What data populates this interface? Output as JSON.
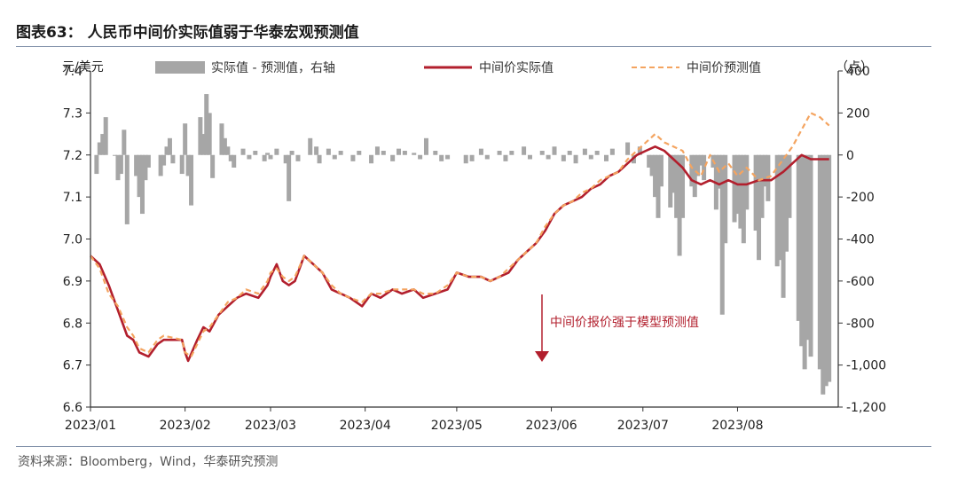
{
  "header": {
    "title": "图表63：  人民币中间价实际值弱于华泰宏观预测值"
  },
  "footer": {
    "source": "资料来源：Bloomberg，Wind，华泰研究预测"
  },
  "colors": {
    "actual": "#b21f2d",
    "predicted": "#f4a460",
    "bars": "#a6a6a6",
    "axis": "#333333",
    "rule": "#7f8fa8"
  },
  "chart_data": {
    "type": "line",
    "y_left_label": "元/美元",
    "y_right_label": "（点）",
    "y_left_range": [
      6.6,
      7.4
    ],
    "y_right_range": [
      -1200,
      400
    ],
    "y_left_ticks": [
      "7.4",
      "7.3",
      "7.2",
      "7.1",
      "7.0",
      "6.9",
      "6.8",
      "6.7",
      "6.6"
    ],
    "y_right_ticks": [
      "400",
      "200",
      "0",
      "-200",
      "-400",
      "-600",
      "-800",
      "-1,000",
      "-1,200"
    ],
    "x_ticks": [
      "2023/01",
      "2023/02",
      "2023/03",
      "2023/04",
      "2023/05",
      "2023/06",
      "2023/07",
      "2023/08"
    ],
    "legend": {
      "bars": "实际值 - 预测值，右轴",
      "actual": "中间价实际值",
      "predicted": "中间价预测值"
    },
    "annotation": "中间价报价强于模型预测值",
    "series_actual": {
      "name": "中间价实际值",
      "points": [
        [
          "2023-01-01",
          6.96
        ],
        [
          "2023-01-04",
          6.94
        ],
        [
          "2023-01-07",
          6.89
        ],
        [
          "2023-01-10",
          6.83
        ],
        [
          "2023-01-13",
          6.77
        ],
        [
          "2023-01-15",
          6.76
        ],
        [
          "2023-01-17",
          6.73
        ],
        [
          "2023-01-20",
          6.72
        ],
        [
          "2023-01-23",
          6.75
        ],
        [
          "2023-01-25",
          6.76
        ],
        [
          "2023-01-31",
          6.76
        ],
        [
          "2023-02-01",
          6.73
        ],
        [
          "2023-02-02",
          6.71
        ],
        [
          "2023-02-05",
          6.76
        ],
        [
          "2023-02-07",
          6.79
        ],
        [
          "2023-02-09",
          6.78
        ],
        [
          "2023-02-12",
          6.82
        ],
        [
          "2023-02-15",
          6.84
        ],
        [
          "2023-02-18",
          6.86
        ],
        [
          "2023-02-21",
          6.87
        ],
        [
          "2023-02-25",
          6.86
        ],
        [
          "2023-02-28",
          6.89
        ],
        [
          "2023-03-01",
          6.91
        ],
        [
          "2023-03-03",
          6.94
        ],
        [
          "2023-03-05",
          6.9
        ],
        [
          "2023-03-07",
          6.89
        ],
        [
          "2023-03-09",
          6.9
        ],
        [
          "2023-03-12",
          6.96
        ],
        [
          "2023-03-15",
          6.94
        ],
        [
          "2023-03-18",
          6.92
        ],
        [
          "2023-03-21",
          6.88
        ],
        [
          "2023-03-24",
          6.87
        ],
        [
          "2023-03-27",
          6.86
        ],
        [
          "2023-03-31",
          6.84
        ],
        [
          "2023-04-03",
          6.87
        ],
        [
          "2023-04-06",
          6.86
        ],
        [
          "2023-04-10",
          6.88
        ],
        [
          "2023-04-13",
          6.87
        ],
        [
          "2023-04-17",
          6.88
        ],
        [
          "2023-04-20",
          6.86
        ],
        [
          "2023-04-24",
          6.87
        ],
        [
          "2023-04-28",
          6.88
        ],
        [
          "2023-05-01",
          6.92
        ],
        [
          "2023-05-05",
          6.91
        ],
        [
          "2023-05-09",
          6.91
        ],
        [
          "2023-05-12",
          6.9
        ],
        [
          "2023-05-15",
          6.91
        ],
        [
          "2023-05-18",
          6.92
        ],
        [
          "2023-05-21",
          6.95
        ],
        [
          "2023-05-24",
          6.97
        ],
        [
          "2023-05-27",
          6.99
        ],
        [
          "2023-05-30",
          7.02
        ],
        [
          "2023-06-02",
          7.06
        ],
        [
          "2023-06-05",
          7.08
        ],
        [
          "2023-06-08",
          7.09
        ],
        [
          "2023-06-11",
          7.1
        ],
        [
          "2023-06-14",
          7.12
        ],
        [
          "2023-06-17",
          7.13
        ],
        [
          "2023-06-20",
          7.15
        ],
        [
          "2023-06-23",
          7.16
        ],
        [
          "2023-06-26",
          7.18
        ],
        [
          "2023-06-29",
          7.2
        ],
        [
          "2023-07-02",
          7.21
        ],
        [
          "2023-07-05",
          7.22
        ],
        [
          "2023-07-08",
          7.21
        ],
        [
          "2023-07-11",
          7.19
        ],
        [
          "2023-07-14",
          7.17
        ],
        [
          "2023-07-17",
          7.14
        ],
        [
          "2023-07-20",
          7.13
        ],
        [
          "2023-07-23",
          7.14
        ],
        [
          "2023-07-26",
          7.13
        ],
        [
          "2023-07-29",
          7.14
        ],
        [
          "2023-08-01",
          7.13
        ],
        [
          "2023-08-04",
          7.13
        ],
        [
          "2023-08-08",
          7.14
        ],
        [
          "2023-08-12",
          7.14
        ],
        [
          "2023-08-16",
          7.16
        ],
        [
          "2023-08-19",
          7.18
        ],
        [
          "2023-08-22",
          7.2
        ],
        [
          "2023-08-25",
          7.19
        ],
        [
          "2023-08-28",
          7.19
        ],
        [
          "2023-08-31",
          7.19
        ]
      ]
    },
    "series_predicted": {
      "name": "中间价预测值",
      "points": [
        [
          "2023-01-01",
          6.96
        ],
        [
          "2023-01-04",
          6.93
        ],
        [
          "2023-01-07",
          6.87
        ],
        [
          "2023-01-10",
          6.84
        ],
        [
          "2023-01-13",
          6.79
        ],
        [
          "2023-01-15",
          6.77
        ],
        [
          "2023-01-17",
          6.74
        ],
        [
          "2023-01-20",
          6.73
        ],
        [
          "2023-01-23",
          6.76
        ],
        [
          "2023-01-25",
          6.77
        ],
        [
          "2023-01-31",
          6.76
        ],
        [
          "2023-02-01",
          6.73
        ],
        [
          "2023-02-03",
          6.72
        ],
        [
          "2023-02-05",
          6.75
        ],
        [
          "2023-02-07",
          6.78
        ],
        [
          "2023-02-09",
          6.79
        ],
        [
          "2023-02-12",
          6.82
        ],
        [
          "2023-02-15",
          6.85
        ],
        [
          "2023-02-18",
          6.86
        ],
        [
          "2023-02-21",
          6.88
        ],
        [
          "2023-02-25",
          6.87
        ],
        [
          "2023-02-28",
          6.9
        ],
        [
          "2023-03-01",
          6.92
        ],
        [
          "2023-03-03",
          6.93
        ],
        [
          "2023-03-05",
          6.91
        ],
        [
          "2023-03-07",
          6.9
        ],
        [
          "2023-03-09",
          6.91
        ],
        [
          "2023-03-12",
          6.96
        ],
        [
          "2023-03-15",
          6.94
        ],
        [
          "2023-03-18",
          6.92
        ],
        [
          "2023-03-21",
          6.89
        ],
        [
          "2023-03-24",
          6.87
        ],
        [
          "2023-03-27",
          6.86
        ],
        [
          "2023-03-31",
          6.85
        ],
        [
          "2023-04-03",
          6.87
        ],
        [
          "2023-04-06",
          6.87
        ],
        [
          "2023-04-10",
          6.88
        ],
        [
          "2023-04-13",
          6.88
        ],
        [
          "2023-04-17",
          6.88
        ],
        [
          "2023-04-20",
          6.87
        ],
        [
          "2023-04-24",
          6.87
        ],
        [
          "2023-04-28",
          6.89
        ],
        [
          "2023-05-01",
          6.92
        ],
        [
          "2023-05-05",
          6.91
        ],
        [
          "2023-05-09",
          6.91
        ],
        [
          "2023-05-12",
          6.9
        ],
        [
          "2023-05-15",
          6.91
        ],
        [
          "2023-05-18",
          6.93
        ],
        [
          "2023-05-21",
          6.95
        ],
        [
          "2023-05-24",
          6.97
        ],
        [
          "2023-05-27",
          6.99
        ],
        [
          "2023-05-30",
          7.03
        ],
        [
          "2023-06-02",
          7.06
        ],
        [
          "2023-06-05",
          7.08
        ],
        [
          "2023-06-08",
          7.09
        ],
        [
          "2023-06-11",
          7.11
        ],
        [
          "2023-06-14",
          7.12
        ],
        [
          "2023-06-17",
          7.14
        ],
        [
          "2023-06-20",
          7.15
        ],
        [
          "2023-06-23",
          7.16
        ],
        [
          "2023-06-26",
          7.19
        ],
        [
          "2023-06-29",
          7.21
        ],
        [
          "2023-07-02",
          7.23
        ],
        [
          "2023-07-05",
          7.25
        ],
        [
          "2023-07-08",
          7.23
        ],
        [
          "2023-07-11",
          7.22
        ],
        [
          "2023-07-14",
          7.21
        ],
        [
          "2023-07-17",
          7.17
        ],
        [
          "2023-07-20",
          7.15
        ],
        [
          "2023-07-23",
          7.2
        ],
        [
          "2023-07-26",
          7.16
        ],
        [
          "2023-07-29",
          7.18
        ],
        [
          "2023-08-01",
          7.15
        ],
        [
          "2023-08-04",
          7.17
        ],
        [
          "2023-08-08",
          7.14
        ],
        [
          "2023-08-12",
          7.15
        ],
        [
          "2023-08-16",
          7.19
        ],
        [
          "2023-08-19",
          7.22
        ],
        [
          "2023-08-22",
          7.26
        ],
        [
          "2023-08-25",
          7.3
        ],
        [
          "2023-08-28",
          7.29
        ],
        [
          "2023-08-31",
          7.27
        ]
      ]
    },
    "series_diff": {
      "name": "实际值 - 预测值，右轴",
      "points": [
        [
          "2023-01-03",
          -90
        ],
        [
          "2023-01-04",
          60
        ],
        [
          "2023-01-05",
          100
        ],
        [
          "2023-01-06",
          180
        ],
        [
          "2023-01-09",
          0
        ],
        [
          "2023-01-10",
          -120
        ],
        [
          "2023-01-11",
          -90
        ],
        [
          "2023-01-12",
          120
        ],
        [
          "2023-01-13",
          -330
        ],
        [
          "2023-01-16",
          -100
        ],
        [
          "2023-01-17",
          -200
        ],
        [
          "2023-01-18",
          -280
        ],
        [
          "2023-01-19",
          -120
        ],
        [
          "2023-01-20",
          -60
        ],
        [
          "2023-01-24",
          -100
        ],
        [
          "2023-01-25",
          -50
        ],
        [
          "2023-01-26",
          40
        ],
        [
          "2023-01-27",
          80
        ],
        [
          "2023-01-28",
          -40
        ],
        [
          "2023-01-31",
          -90
        ],
        [
          "2023-02-01",
          150
        ],
        [
          "2023-02-02",
          -100
        ],
        [
          "2023-02-03",
          -240
        ],
        [
          "2023-02-06",
          180
        ],
        [
          "2023-02-07",
          100
        ],
        [
          "2023-02-08",
          290
        ],
        [
          "2023-02-09",
          200
        ],
        [
          "2023-02-10",
          -110
        ],
        [
          "2023-02-13",
          150
        ],
        [
          "2023-02-14",
          80
        ],
        [
          "2023-02-15",
          40
        ],
        [
          "2023-02-16",
          -30
        ],
        [
          "2023-02-17",
          -60
        ],
        [
          "2023-02-20",
          30
        ],
        [
          "2023-02-22",
          -20
        ],
        [
          "2023-02-24",
          20
        ],
        [
          "2023-02-27",
          -30
        ],
        [
          "2023-02-28",
          10
        ],
        [
          "2023-03-01",
          -20
        ],
        [
          "2023-03-03",
          30
        ],
        [
          "2023-03-06",
          -40
        ],
        [
          "2023-03-07",
          -220
        ],
        [
          "2023-03-08",
          20
        ],
        [
          "2023-03-10",
          -30
        ],
        [
          "2023-03-14",
          80
        ],
        [
          "2023-03-16",
          40
        ],
        [
          "2023-03-17",
          -40
        ],
        [
          "2023-03-20",
          30
        ],
        [
          "2023-03-22",
          -20
        ],
        [
          "2023-03-24",
          20
        ],
        [
          "2023-03-28",
          -30
        ],
        [
          "2023-03-30",
          20
        ],
        [
          "2023-04-03",
          -40
        ],
        [
          "2023-04-05",
          40
        ],
        [
          "2023-04-07",
          20
        ],
        [
          "2023-04-10",
          -30
        ],
        [
          "2023-04-12",
          30
        ],
        [
          "2023-04-14",
          20
        ],
        [
          "2023-04-17",
          10
        ],
        [
          "2023-04-19",
          -20
        ],
        [
          "2023-04-21",
          80
        ],
        [
          "2023-04-24",
          20
        ],
        [
          "2023-04-26",
          -30
        ],
        [
          "2023-04-28",
          -20
        ],
        [
          "2023-05-04",
          -40
        ],
        [
          "2023-05-06",
          -30
        ],
        [
          "2023-05-09",
          30
        ],
        [
          "2023-05-11",
          -20
        ],
        [
          "2023-05-15",
          20
        ],
        [
          "2023-05-17",
          -30
        ],
        [
          "2023-05-19",
          20
        ],
        [
          "2023-05-23",
          40
        ],
        [
          "2023-05-25",
          -20
        ],
        [
          "2023-05-29",
          20
        ],
        [
          "2023-05-31",
          -20
        ],
        [
          "2023-06-02",
          40
        ],
        [
          "2023-06-05",
          -30
        ],
        [
          "2023-06-07",
          20
        ],
        [
          "2023-06-09",
          -40
        ],
        [
          "2023-06-12",
          30
        ],
        [
          "2023-06-14",
          -20
        ],
        [
          "2023-06-16",
          20
        ],
        [
          "2023-06-19",
          -30
        ],
        [
          "2023-06-21",
          30
        ],
        [
          "2023-06-26",
          60
        ],
        [
          "2023-06-28",
          -40
        ],
        [
          "2023-06-30",
          40
        ],
        [
          "2023-07-03",
          -60
        ],
        [
          "2023-07-04",
          -100
        ],
        [
          "2023-07-05",
          -200
        ],
        [
          "2023-07-06",
          -300
        ],
        [
          "2023-07-07",
          -150
        ],
        [
          "2023-07-10",
          -250
        ],
        [
          "2023-07-11",
          -180
        ],
        [
          "2023-07-12",
          -300
        ],
        [
          "2023-07-13",
          -480
        ],
        [
          "2023-07-14",
          -300
        ],
        [
          "2023-07-17",
          -150
        ],
        [
          "2023-07-18",
          -200
        ],
        [
          "2023-07-19",
          -100
        ],
        [
          "2023-07-20",
          -50
        ],
        [
          "2023-07-21",
          -120
        ],
        [
          "2023-07-24",
          -60
        ],
        [
          "2023-07-25",
          -260
        ],
        [
          "2023-07-26",
          -160
        ],
        [
          "2023-07-27",
          -760
        ],
        [
          "2023-07-28",
          -420
        ],
        [
          "2023-07-31",
          -320
        ],
        [
          "2023-08-01",
          -280
        ],
        [
          "2023-08-02",
          -350
        ],
        [
          "2023-08-03",
          -420
        ],
        [
          "2023-08-04",
          -260
        ],
        [
          "2023-08-07",
          -360
        ],
        [
          "2023-08-08",
          -500
        ],
        [
          "2023-08-09",
          -300
        ],
        [
          "2023-08-10",
          -150
        ],
        [
          "2023-08-11",
          -220
        ],
        [
          "2023-08-14",
          -530
        ],
        [
          "2023-08-15",
          -500
        ],
        [
          "2023-08-16",
          -680
        ],
        [
          "2023-08-17",
          -460
        ],
        [
          "2023-08-18",
          -300
        ],
        [
          "2023-08-21",
          -790
        ],
        [
          "2023-08-22",
          -910
        ],
        [
          "2023-08-23",
          -1020
        ],
        [
          "2023-08-24",
          -880
        ],
        [
          "2023-08-25",
          -960
        ],
        [
          "2023-08-28",
          -1020
        ],
        [
          "2023-08-29",
          -1140
        ],
        [
          "2023-08-30",
          -1100
        ],
        [
          "2023-08-31",
          -1080
        ]
      ]
    }
  }
}
